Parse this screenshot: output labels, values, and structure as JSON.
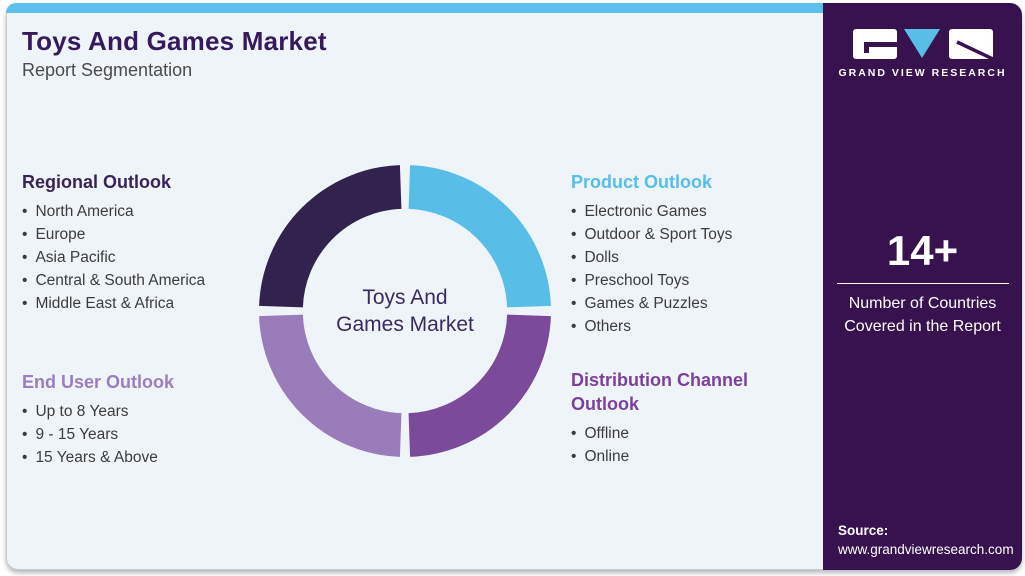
{
  "header": {
    "title": "Toys And Games Market",
    "subtitle": "Report Segmentation"
  },
  "sections": {
    "regional": {
      "heading": "Regional Outlook",
      "color": "#3a2356",
      "items": [
        "North America",
        "Europe",
        "Asia Pacific",
        "Central & South America",
        "Middle East & Africa"
      ]
    },
    "end_user": {
      "heading": "End User Outlook",
      "color": "#9c7ec0",
      "items": [
        "Up to 8 Years",
        "9 - 15 Years",
        "15 Years & Above"
      ]
    },
    "product": {
      "heading": "Product Outlook",
      "color": "#55beec",
      "items": [
        "Electronic Games",
        "Outdoor & Sport Toys",
        "Dolls",
        "Preschool Toys",
        "Games & Puzzles",
        "Others"
      ]
    },
    "distribution": {
      "heading": "Distribution Channel Outlook",
      "color": "#7c3f9c",
      "items": [
        "Offline",
        "Online"
      ]
    }
  },
  "chart_data": {
    "type": "donut",
    "title": "Toys And Games Market",
    "center_label_lines": [
      "Toys And",
      "Games Market"
    ],
    "segments": [
      {
        "label": "Product Outlook",
        "value": 25,
        "color": "#58bee8"
      },
      {
        "label": "Distribution Channel Outlook",
        "value": 25,
        "color": "#7b4a9b"
      },
      {
        "label": "End User Outlook",
        "value": 25,
        "color": "#9a7cba"
      },
      {
        "label": "Regional Outlook",
        "value": 25,
        "color": "#32224e"
      }
    ],
    "start_angle_deg": 0,
    "gap_deg": 4,
    "inner_radius_ratio": 0.7,
    "legend_position": "none",
    "notes": "Four equal quadrants; colors key the four outlook sections"
  },
  "sidebar": {
    "logo_text": "GRAND VIEW RESEARCH",
    "stat_value": "14+",
    "stat_label_lines": [
      "Number of Countries",
      "Covered in the Report"
    ],
    "source_label": "Source:",
    "source_url": "www.grandviewresearch.com"
  },
  "colors": {
    "topbar": "#5bc0ea",
    "card_bg": "#eff4f9",
    "sidebar_bg": "#37124e",
    "title": "#371a5e",
    "body_text": "#3c3c3c"
  }
}
